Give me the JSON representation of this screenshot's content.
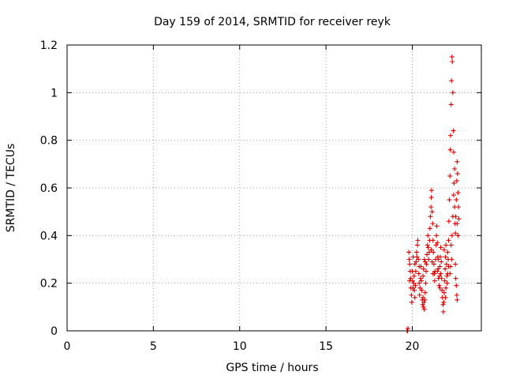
{
  "chart_data": {
    "type": "scatter",
    "title": "Day 159 of 2014, SRMTID for receiver reyk",
    "xlabel": "GPS time / hours",
    "ylabel": "SRMTID / TECUs",
    "xlim": [
      0,
      24
    ],
    "ylim": [
      0,
      1.2
    ],
    "x_ticks": [
      0,
      5,
      10,
      15,
      20
    ],
    "x_tick_labels": [
      "0",
      "5",
      "10",
      "15",
      "20"
    ],
    "y_ticks": [
      0,
      0.2,
      0.4,
      0.6,
      0.8,
      1.0,
      1.2
    ],
    "y_tick_labels": [
      "0",
      "0.2",
      "0.4",
      "0.6",
      "0.8",
      "1",
      "1.2"
    ],
    "grid": true,
    "marker": "plus",
    "series": [
      {
        "name": "reyk",
        "color": "#e00000",
        "points": [
          [
            19.7,
            0.0
          ],
          [
            19.72,
            0.0
          ],
          [
            19.75,
            0.01
          ],
          [
            19.8,
            0.33
          ],
          [
            19.82,
            0.3
          ],
          [
            19.85,
            0.28
          ],
          [
            19.88,
            0.25
          ],
          [
            19.9,
            0.22
          ],
          [
            19.92,
            0.18
          ],
          [
            19.95,
            0.15
          ],
          [
            19.97,
            0.12
          ],
          [
            20.0,
            0.25
          ],
          [
            20.02,
            0.21
          ],
          [
            20.05,
            0.18
          ],
          [
            20.08,
            0.2
          ],
          [
            20.1,
            0.23
          ],
          [
            20.12,
            0.17
          ],
          [
            20.15,
            0.14
          ],
          [
            20.18,
            0.19
          ],
          [
            20.2,
            0.25
          ],
          [
            20.22,
            0.29
          ],
          [
            20.25,
            0.33
          ],
          [
            20.27,
            0.31
          ],
          [
            20.3,
            0.36
          ],
          [
            20.32,
            0.38
          ],
          [
            20.35,
            0.3
          ],
          [
            20.38,
            0.24
          ],
          [
            20.4,
            0.2
          ],
          [
            20.42,
            0.15
          ],
          [
            20.45,
            0.18
          ],
          [
            20.48,
            0.22
          ],
          [
            20.5,
            0.27
          ],
          [
            20.52,
            0.21
          ],
          [
            20.55,
            0.17
          ],
          [
            20.58,
            0.13
          ],
          [
            20.6,
            0.11
          ],
          [
            20.62,
            0.14
          ],
          [
            20.65,
            0.1
          ],
          [
            20.68,
            0.12
          ],
          [
            20.7,
            0.09
          ],
          [
            20.72,
            0.13
          ],
          [
            20.75,
            0.16
          ],
          [
            20.78,
            0.2
          ],
          [
            20.8,
            0.25
          ],
          [
            20.82,
            0.28
          ],
          [
            20.85,
            0.32
          ],
          [
            20.88,
            0.36
          ],
          [
            20.9,
            0.4
          ],
          [
            20.92,
            0.35
          ],
          [
            20.95,
            0.3
          ],
          [
            20.98,
            0.33
          ],
          [
            21.0,
            0.38
          ],
          [
            21.02,
            0.43
          ],
          [
            21.05,
            0.48
          ],
          [
            21.08,
            0.52
          ],
          [
            21.1,
            0.56
          ],
          [
            21.12,
            0.59
          ],
          [
            21.15,
            0.5
          ],
          [
            21.18,
            0.45
          ],
          [
            21.2,
            0.38
          ],
          [
            21.22,
            0.33
          ],
          [
            21.25,
            0.28
          ],
          [
            21.28,
            0.24
          ],
          [
            21.3,
            0.21
          ],
          [
            21.32,
            0.25
          ],
          [
            21.35,
            0.3
          ],
          [
            21.38,
            0.36
          ],
          [
            21.4,
            0.4
          ],
          [
            21.42,
            0.44
          ],
          [
            21.45,
            0.37
          ],
          [
            21.48,
            0.31
          ],
          [
            21.5,
            0.26
          ],
          [
            21.52,
            0.22
          ],
          [
            21.55,
            0.19
          ],
          [
            21.58,
            0.23
          ],
          [
            21.6,
            0.27
          ],
          [
            21.62,
            0.31
          ],
          [
            21.65,
            0.35
          ],
          [
            21.68,
            0.29
          ],
          [
            21.7,
            0.22
          ],
          [
            21.72,
            0.17
          ],
          [
            21.75,
            0.14
          ],
          [
            21.78,
            0.11
          ],
          [
            21.8,
            0.08
          ],
          [
            21.82,
            0.12
          ],
          [
            21.85,
            0.16
          ],
          [
            21.88,
            0.21
          ],
          [
            21.9,
            0.26
          ],
          [
            21.92,
            0.31
          ],
          [
            21.95,
            0.36
          ],
          [
            21.98,
            0.28
          ],
          [
            22.0,
            0.23
          ],
          [
            22.02,
            0.2
          ],
          [
            22.05,
            0.24
          ],
          [
            22.08,
            0.3
          ],
          [
            22.1,
            0.38
          ],
          [
            22.12,
            0.46
          ],
          [
            22.15,
            0.55
          ],
          [
            22.18,
            0.65
          ],
          [
            22.2,
            0.76
          ],
          [
            22.22,
            0.82
          ],
          [
            22.25,
            0.95
          ],
          [
            22.27,
            1.05
          ],
          [
            22.3,
            1.15
          ],
          [
            22.32,
            1.13
          ],
          [
            22.35,
            1.0
          ],
          [
            22.38,
            0.84
          ],
          [
            22.4,
            0.75
          ],
          [
            22.42,
            0.62
          ],
          [
            22.45,
            0.52
          ],
          [
            22.48,
            0.45
          ],
          [
            22.5,
            0.41
          ],
          [
            22.52,
            0.48
          ],
          [
            22.55,
            0.55
          ],
          [
            22.58,
            0.63
          ],
          [
            22.6,
            0.71
          ],
          [
            22.62,
            0.66
          ],
          [
            22.65,
            0.58
          ],
          [
            22.68,
            0.52
          ],
          [
            22.7,
            0.47
          ],
          [
            22.5,
            0.28
          ],
          [
            22.52,
            0.22
          ],
          [
            22.55,
            0.19
          ],
          [
            22.58,
            0.15
          ],
          [
            22.6,
            0.13
          ],
          [
            22.25,
            0.36
          ],
          [
            22.28,
            0.3
          ],
          [
            22.22,
            0.27
          ],
          [
            22.18,
            0.24
          ],
          [
            21.95,
            0.18
          ],
          [
            21.92,
            0.14
          ],
          [
            20.65,
            0.26
          ],
          [
            20.7,
            0.3
          ],
          [
            20.75,
            0.29
          ],
          [
            20.62,
            0.23
          ],
          [
            20.4,
            0.27
          ],
          [
            20.15,
            0.28
          ],
          [
            20.05,
            0.31
          ],
          [
            19.85,
            0.21
          ],
          [
            21.1,
            0.34
          ],
          [
            21.15,
            0.29
          ],
          [
            21.2,
            0.24
          ],
          [
            21.45,
            0.25
          ],
          [
            21.5,
            0.3
          ],
          [
            21.6,
            0.18
          ],
          [
            21.65,
            0.24
          ],
          [
            21.85,
            0.34
          ],
          [
            22.05,
            0.33
          ],
          [
            22.1,
            0.27
          ],
          [
            22.3,
            0.4
          ],
          [
            22.35,
            0.48
          ],
          [
            22.4,
            0.57
          ],
          [
            22.45,
            0.68
          ],
          [
            22.6,
            0.45
          ],
          [
            22.65,
            0.4
          ]
        ]
      }
    ]
  }
}
